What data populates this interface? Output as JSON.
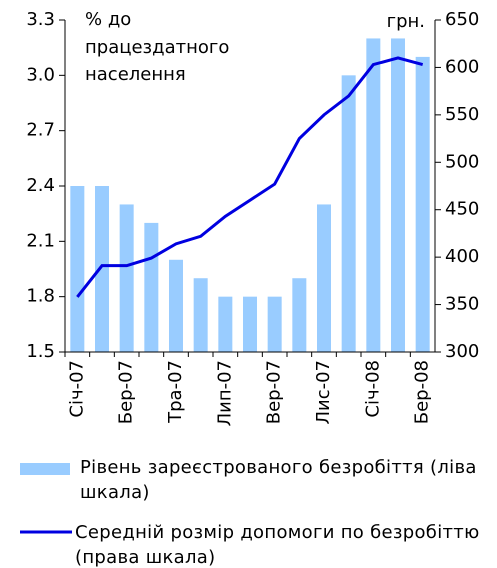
{
  "chart_data": {
    "type": "bar_line",
    "annotations": [
      "% до",
      "працездатного",
      "населення",
      "грн."
    ],
    "categories": [
      "Січ-07",
      null,
      "Бер-07",
      null,
      "Тра-07",
      null,
      "Лип-07",
      null,
      "Вер-07",
      null,
      "Лис-07",
      null,
      "Січ-08",
      null,
      "Бер-08"
    ],
    "series": [
      {
        "name": "Рівень зареєстрованого безробіття (ліва шкала)",
        "type": "bar",
        "color": "#99ccff",
        "axis": "y",
        "values": [
          2.4,
          2.4,
          2.3,
          2.2,
          2.0,
          1.9,
          1.8,
          1.8,
          1.8,
          1.9,
          2.3,
          3.0,
          3.2,
          3.2,
          3.1
        ]
      },
      {
        "name": "Середній розмір допомоги по безробіттю (права шкала)",
        "type": "line",
        "color": "#0000e0",
        "axis": "y2",
        "values": [
          358,
          391,
          391,
          399,
          414,
          422,
          443,
          460,
          477,
          525,
          550,
          570,
          603,
          610,
          603
        ]
      }
    ],
    "ylim": [
      1.5,
      3.3
    ],
    "yticks": [
      1.5,
      1.8,
      2.1,
      2.4,
      2.7,
      {
        "value": 3,
        "label": "3.0"
      },
      3.3
    ],
    "y2lim": [
      300,
      650
    ],
    "y2ticks": [
      300,
      350,
      400,
      450,
      500,
      550,
      600,
      650
    ]
  }
}
